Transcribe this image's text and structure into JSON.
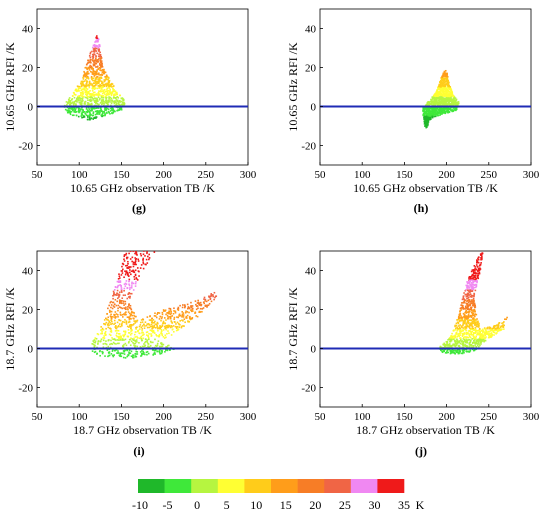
{
  "panels": [
    {
      "letter": "(g)",
      "xlabel": "10.65 GHz observation TB /K",
      "ylabel": "10.65 GHz RFI /K",
      "xlim": [
        50,
        300
      ],
      "ylim": [
        -30,
        50
      ],
      "xticks": [
        "50",
        "100",
        "150",
        "200",
        "250",
        "300"
      ],
      "yticks": [
        "-20",
        "0",
        "20",
        "40"
      ],
      "reference_line": {
        "y": 0,
        "color": "#1f2bb5"
      },
      "chart_data": {
        "type": "scatter",
        "description_points": [
          [
            85,
            0
          ],
          [
            95,
            2
          ],
          [
            100,
            6
          ],
          [
            105,
            10
          ],
          [
            110,
            16
          ],
          [
            113,
            22
          ],
          [
            116,
            27
          ],
          [
            118,
            30
          ],
          [
            120,
            34
          ],
          [
            122,
            36
          ],
          [
            125,
            20
          ],
          [
            130,
            10
          ],
          [
            135,
            5
          ],
          [
            120,
            -6
          ],
          [
            100,
            -4
          ],
          [
            140,
            2
          ],
          [
            150,
            0
          ]
        ],
        "envelope": [
          [
            82,
            1
          ],
          [
            95,
            8
          ],
          [
            104,
            16
          ],
          [
            112,
            26
          ],
          [
            118,
            33
          ],
          [
            121,
            37
          ],
          [
            124,
            34
          ],
          [
            128,
            20
          ],
          [
            136,
            14
          ],
          [
            148,
            6
          ],
          [
            156,
            2
          ],
          [
            150,
            -2
          ],
          [
            130,
            -5
          ],
          [
            112,
            -7
          ],
          [
            95,
            -5
          ],
          [
            84,
            -3
          ]
        ],
        "color_scale": "rfi",
        "x_range": [
          80,
          160
        ],
        "y_range": [
          -8,
          37
        ]
      }
    },
    {
      "letter": "(h)",
      "xlabel": "10.65 GHz observation TB /K",
      "ylabel": "10.65 GHz RFI /K",
      "xlim": [
        50,
        300
      ],
      "ylim": [
        -30,
        50
      ],
      "xticks": [
        "50",
        "100",
        "150",
        "200",
        "250",
        "300"
      ],
      "yticks": [
        "-20",
        "0",
        "20",
        "40"
      ],
      "reference_line": {
        "y": 0,
        "color": "#1f2bb5"
      },
      "chart_data": {
        "type": "scatter",
        "envelope": [
          [
            172,
            0
          ],
          [
            180,
            3
          ],
          [
            188,
            8
          ],
          [
            193,
            14
          ],
          [
            197,
            18
          ],
          [
            200,
            19
          ],
          [
            203,
            12
          ],
          [
            208,
            6
          ],
          [
            215,
            2
          ],
          [
            212,
            -2
          ],
          [
            195,
            -4
          ],
          [
            182,
            -6
          ],
          [
            175,
            -12
          ],
          [
            172,
            -4
          ]
        ],
        "color_scale": "rfi",
        "x_range": [
          170,
          215
        ],
        "y_range": [
          -12,
          19
        ]
      }
    },
    {
      "letter": "(i)",
      "xlabel": "18.7 GHz observation TB /K",
      "ylabel": "18.7 GHz RFI /K",
      "xlim": [
        50,
        300
      ],
      "ylim": [
        -30,
        50
      ],
      "xticks": [
        "50",
        "100",
        "150",
        "200",
        "250",
        "300"
      ],
      "yticks": [
        "-20",
        "0",
        "20",
        "40"
      ],
      "reference_line": {
        "y": 0,
        "color": "#1f2bb5"
      },
      "chart_data": {
        "type": "scatter",
        "envelope": [
          [
            110,
            0
          ],
          [
            125,
            10
          ],
          [
            135,
            22
          ],
          [
            145,
            35
          ],
          [
            155,
            50
          ],
          [
            190,
            50
          ],
          [
            175,
            40
          ],
          [
            160,
            25
          ],
          [
            170,
            15
          ],
          [
            200,
            20
          ],
          [
            235,
            24
          ],
          [
            265,
            30
          ],
          [
            262,
            26
          ],
          [
            240,
            16
          ],
          [
            215,
            8
          ],
          [
            195,
            4
          ],
          [
            215,
            0
          ],
          [
            200,
            -3
          ],
          [
            160,
            -5
          ],
          [
            125,
            -4
          ]
        ],
        "color_scale": "rfi",
        "x_range": [
          105,
          270
        ],
        "y_range": [
          -5,
          50
        ]
      }
    },
    {
      "letter": "(j)",
      "xlabel": "18.7 GHz observation TB /K",
      "ylabel": "18.7 GHz RFI /K",
      "xlim": [
        50,
        300
      ],
      "ylim": [
        -30,
        50
      ],
      "xticks": [
        "50",
        "100",
        "150",
        "200",
        "250",
        "300"
      ],
      "yticks": [
        "-20",
        "0",
        "20",
        "40"
      ],
      "reference_line": {
        "y": 0,
        "color": "#1f2bb5"
      },
      "chart_data": {
        "type": "scatter",
        "envelope": [
          [
            190,
            0
          ],
          [
            205,
            6
          ],
          [
            212,
            14
          ],
          [
            218,
            24
          ],
          [
            224,
            34
          ],
          [
            235,
            45
          ],
          [
            243,
            50
          ],
          [
            240,
            40
          ],
          [
            232,
            26
          ],
          [
            240,
            10
          ],
          [
            258,
            12
          ],
          [
            272,
            16
          ],
          [
            268,
            10
          ],
          [
            250,
            5
          ],
          [
            240,
            1
          ],
          [
            230,
            -2
          ],
          [
            210,
            -3
          ],
          [
            195,
            -2
          ]
        ],
        "color_scale": "rfi",
        "x_range": [
          190,
          275
        ],
        "y_range": [
          -3,
          50
        ]
      }
    }
  ],
  "colorbar": {
    "ticks": [
      "-10",
      "-5",
      "0",
      "5",
      "10",
      "15",
      "20",
      "25",
      "30",
      "35"
    ],
    "unit": "K",
    "bins": [
      {
        "from": -10,
        "to": -5,
        "color": "#1fb82a"
      },
      {
        "from": -5,
        "to": 0,
        "color": "#3fe83a"
      },
      {
        "from": 0,
        "to": 5,
        "color": "#b6f540"
      },
      {
        "from": 5,
        "to": 10,
        "color": "#ffff33"
      },
      {
        "from": 10,
        "to": 15,
        "color": "#ffcc1a"
      },
      {
        "from": 15,
        "to": 20,
        "color": "#ff9d1a"
      },
      {
        "from": 20,
        "to": 25,
        "color": "#f77d26"
      },
      {
        "from": 25,
        "to": 30,
        "color": "#f06545"
      },
      {
        "from": 30,
        "to": 35,
        "color": "#f088f2"
      },
      {
        "from": 35,
        "to": 40,
        "color": "#ef1a1a"
      }
    ]
  }
}
